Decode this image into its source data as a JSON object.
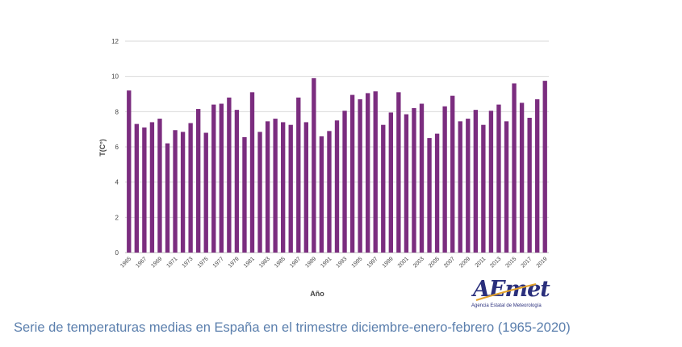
{
  "caption": "Serie de temperaturas medias en España en el trimestre diciembre-enero-febrero (1965-2020)",
  "logo": {
    "wordmark": "AEmet",
    "subtitle": "Agencia Estatal de Meteorología"
  },
  "colors": {
    "bar": "#7b2d7f",
    "grid": "#d9d9d9",
    "caption": "#5b7fad",
    "logo": "#2a2f7c",
    "logo_accent": "#e3a22b"
  },
  "chart_data": {
    "type": "bar",
    "xlabel": "Año",
    "ylabel": "T(C°)",
    "ylim": [
      0,
      12
    ],
    "yticks": [
      0,
      2,
      4,
      6,
      8,
      10,
      12
    ],
    "grid": true,
    "categories": [
      1965,
      1966,
      1967,
      1968,
      1969,
      1970,
      1971,
      1972,
      1973,
      1974,
      1975,
      1976,
      1977,
      1978,
      1979,
      1980,
      1981,
      1982,
      1983,
      1984,
      1985,
      1986,
      1987,
      1988,
      1989,
      1990,
      1991,
      1992,
      1993,
      1994,
      1995,
      1996,
      1997,
      1998,
      1999,
      2000,
      2001,
      2002,
      2003,
      2004,
      2005,
      2006,
      2007,
      2008,
      2009,
      2010,
      2011,
      2012,
      2013,
      2014,
      2015,
      2016,
      2017,
      2018,
      2019
    ],
    "tick_labels_shown": [
      1965,
      1967,
      1969,
      1971,
      1973,
      1975,
      1977,
      1979,
      1981,
      1983,
      1985,
      1987,
      1989,
      1991,
      1993,
      1995,
      1997,
      1999,
      2001,
      2003,
      2005,
      2007,
      2009,
      2011,
      2013,
      2015,
      2017,
      2019
    ],
    "values": [
      9.2,
      7.3,
      7.1,
      7.4,
      7.6,
      6.2,
      6.95,
      6.85,
      7.35,
      8.15,
      6.8,
      8.4,
      8.45,
      8.8,
      8.1,
      6.55,
      9.1,
      6.85,
      7.45,
      7.6,
      7.4,
      7.25,
      8.8,
      7.4,
      9.9,
      6.6,
      6.9,
      7.5,
      8.05,
      8.95,
      8.7,
      9.05,
      9.15,
      7.25,
      7.95,
      9.1,
      7.85,
      8.2,
      8.45,
      6.5,
      6.75,
      8.3,
      8.9,
      7.45,
      7.6,
      8.1,
      7.25,
      8.05,
      8.4,
      7.45,
      9.6,
      8.5,
      7.65,
      8.7,
      9.75
    ]
  }
}
